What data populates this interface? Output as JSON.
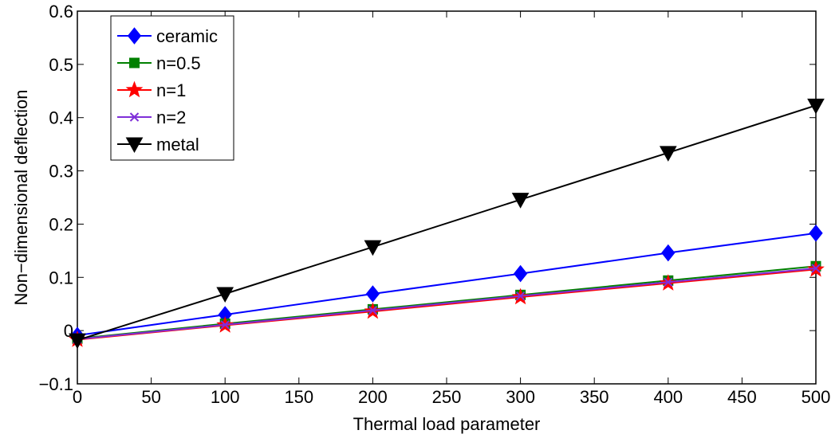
{
  "chart_data": {
    "type": "line",
    "title": "",
    "xlabel": "Thermal load parameter",
    "ylabel": "Non−dimensional deflection",
    "xlim": [
      0,
      500
    ],
    "ylim": [
      -0.1,
      0.6
    ],
    "xticks": [
      0,
      50,
      100,
      150,
      200,
      250,
      300,
      350,
      400,
      450,
      500
    ],
    "yticks": [
      -0.1,
      0,
      0.1,
      0.2,
      0.3,
      0.4,
      0.5,
      0.6
    ],
    "xtick_labels": [
      "0",
      "50",
      "100",
      "150",
      "200",
      "250",
      "300",
      "350",
      "400",
      "450",
      "500"
    ],
    "ytick_labels": [
      "−0.1",
      "0",
      "0.1",
      "0.2",
      "0.3",
      "0.4",
      "0.5",
      "0.6"
    ],
    "grid": false,
    "legend_position": "top-left",
    "x": [
      0,
      100,
      200,
      300,
      400,
      500
    ],
    "series": [
      {
        "name": "ceramic",
        "color": "#0000ff",
        "marker": "diamond",
        "values": [
          -0.009,
          0.03,
          0.069,
          0.107,
          0.146,
          0.183
        ]
      },
      {
        "name": "n=0.5",
        "color": "#008000",
        "marker": "square",
        "values": [
          -0.015,
          0.013,
          0.04,
          0.067,
          0.094,
          0.121
        ]
      },
      {
        "name": "n=1",
        "color": "#ff0000",
        "marker": "star",
        "values": [
          -0.017,
          0.01,
          0.036,
          0.063,
          0.089,
          0.115
        ]
      },
      {
        "name": "n=2",
        "color": "#7f2fd8",
        "marker": "x",
        "values": [
          -0.016,
          0.011,
          0.038,
          0.065,
          0.091,
          0.117
        ]
      },
      {
        "name": "metal",
        "color": "#000000",
        "marker": "triangle-down",
        "values": [
          -0.018,
          0.069,
          0.157,
          0.246,
          0.334,
          0.423
        ]
      }
    ]
  }
}
